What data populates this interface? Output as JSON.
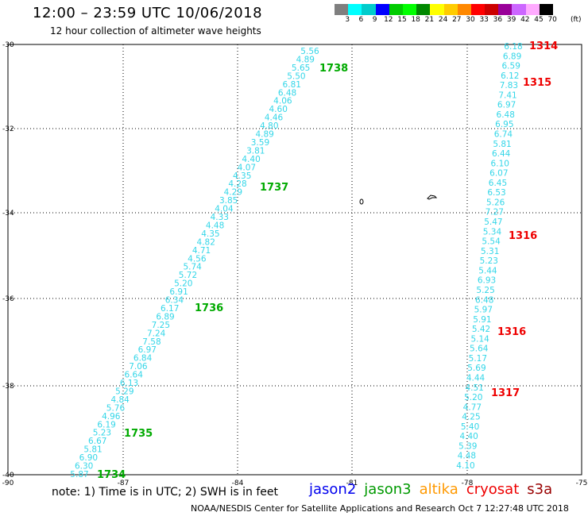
{
  "title": "12:00 – 23:59 UTC 10/06/2018",
  "subtitle": "12 hour collection of altimeter wave heights",
  "colorbar": {
    "colors": [
      "#7f7f7f",
      "#00ffff",
      "#00cccc",
      "#0000ff",
      "#00cc00",
      "#00ff00",
      "#008800",
      "#ffff00",
      "#ffcc00",
      "#ff8800",
      "#ff0000",
      "#cc0000",
      "#990099",
      "#cc66ff",
      "#ffaaff",
      "#000000"
    ],
    "labels": [
      "3",
      "6",
      "9",
      "12",
      "15",
      "18",
      "21",
      "24",
      "27",
      "30",
      "33",
      "36",
      "39",
      "42",
      "45",
      "70"
    ],
    "unit": "(ft)"
  },
  "axes": {
    "lat_ticks": [
      "-30",
      "-32",
      "-34",
      "-36",
      "-38",
      "-40"
    ],
    "lon_ticks": [
      "-90",
      "-87",
      "-84",
      "-81",
      "-78",
      "-75"
    ]
  },
  "tracks": [
    {
      "satellite": "jason3",
      "color": "#00aa00",
      "heights": [
        "5.56",
        "4.89",
        "5.65",
        "5.50",
        "6.81",
        "6.48",
        "4.06",
        "4.60",
        "4.46",
        "4.80",
        "4.89",
        "3.59",
        "3.81",
        "4.40",
        "4.07",
        "4.35",
        "4.28",
        "4.29",
        "3.85",
        "4.04",
        "4.33",
        "4.48",
        "4.35",
        "4.82",
        "4.71",
        "4.56",
        "5.74",
        "5.72",
        "5.20",
        "6.91",
        "6.34",
        "6.17",
        "6.89",
        "7.25",
        "7.24",
        "7.58",
        "6.97",
        "6.84",
        "7.06",
        "6.64",
        "6.13",
        "5.29",
        "4.84",
        "5.76",
        "4.96",
        "6.19",
        "5.23",
        "6.67",
        "5.81",
        "6.90",
        "6.30",
        "5.87"
      ],
      "time_labels": [
        "1738",
        "1737",
        "1736",
        "1735",
        "1734"
      ]
    },
    {
      "satellite": "cryosat",
      "color": "#ee0000",
      "heights": [
        "6.18",
        "6.89",
        "6.59",
        "6.12",
        "7.83",
        "7.41",
        "6.97",
        "6.48",
        "6.95",
        "6.74",
        "5.81",
        "6.44",
        "6.10",
        "6.07",
        "6.45",
        "6.53",
        "5.26",
        "7.27",
        "5.47",
        "5.34",
        "5.54",
        "5.31",
        "5.23",
        "5.44",
        "6.93",
        "5.25",
        "6.48",
        "5.97",
        "5.91",
        "5.42",
        "5.14",
        "5.64",
        "5.17",
        "5.69",
        "4.44",
        "4.51",
        "5.20",
        "4.77",
        "4.25",
        "5.40",
        "4.40",
        "5.39",
        "4.48",
        "4.10"
      ],
      "time_labels": [
        "1314",
        "1315",
        "1316",
        "1316",
        "1317"
      ]
    }
  ],
  "note": "note: 1) Time is in UTC; 2) SWH is in feet",
  "satellites": [
    {
      "name": "jason2",
      "color": "#0000ee"
    },
    {
      "name": "jason3",
      "color": "#009900"
    },
    {
      "name": "altika",
      "color": "#ff9900"
    },
    {
      "name": "cryosat",
      "color": "#ee0000"
    },
    {
      "name": "s3a",
      "color": "#990000"
    }
  ],
  "credit": "NOAA/NESDIS Center for Satellite Applications and Research    Oct  7 12:27:48 UTC 2018"
}
